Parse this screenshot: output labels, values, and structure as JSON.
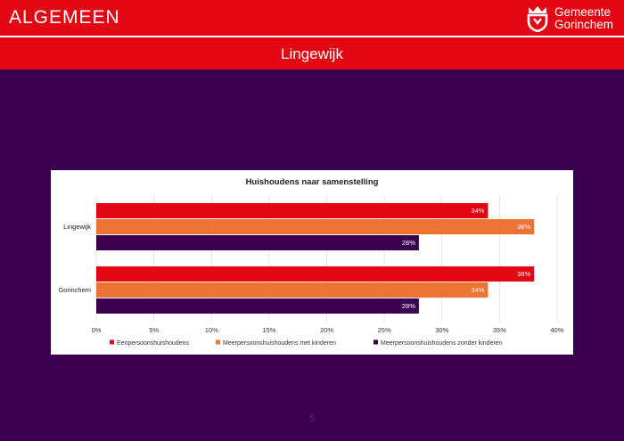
{
  "header": {
    "title": "ALGEMEEN",
    "logo_line1": "Gemeente",
    "logo_line2": "Gorinchem",
    "subtitle": "Lingewijk"
  },
  "page_number": "5",
  "colors": {
    "header_red": "#e30613",
    "background_purple": "#3a0050",
    "series_red": "#e30613",
    "series_orange": "#ed7437",
    "series_purple": "#3a0050"
  },
  "chart_data": {
    "type": "bar",
    "orientation": "horizontal",
    "title": "Huishoudens naar samenstelling",
    "categories": [
      "Lingewijk",
      "Gorinchem"
    ],
    "series": [
      {
        "name": "Eenpersoonshuishoudens",
        "values": [
          34,
          38
        ],
        "labels": [
          "34%",
          "38%"
        ]
      },
      {
        "name": "Meerpersoonshuishoudens met kinderen",
        "values": [
          38,
          34
        ],
        "labels": [
          "38%",
          "34%"
        ]
      },
      {
        "name": "Meerpersoonshuishoudens zonder kinderen",
        "values": [
          28,
          28
        ],
        "labels": [
          "28%",
          "28%"
        ]
      }
    ],
    "xlim": [
      0,
      40
    ],
    "xticks": [
      0,
      5,
      10,
      15,
      20,
      25,
      30,
      35,
      40
    ],
    "xtick_labels": [
      "0%",
      "5%",
      "10%",
      "15%",
      "20%",
      "25%",
      "30%",
      "35%",
      "40%"
    ],
    "grid": true,
    "legend_position": "bottom"
  }
}
